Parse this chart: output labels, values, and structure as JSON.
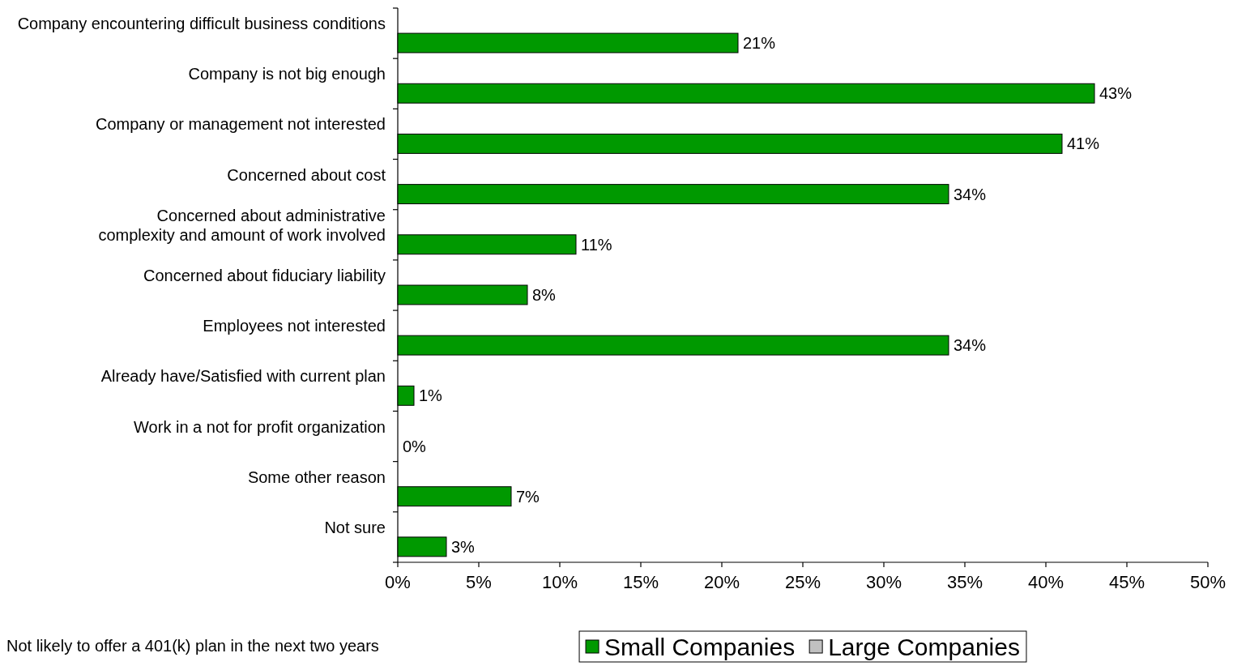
{
  "chart_data": {
    "type": "bar",
    "orientation": "horizontal",
    "categories": [
      "Company encountering difficult business conditions",
      "Company is not big enough",
      "Company or management not interested",
      "Concerned about cost",
      "Concerned about administrative\ncomplexity and amount of work involved",
      "Concerned about fiduciary liability",
      "Employees not interested",
      "Already have/Satisfied with current plan",
      "Work in a not for profit organization",
      "Some other reason",
      "Not sure"
    ],
    "series": [
      {
        "name": "Small Companies",
        "color": "#009900",
        "values": [
          21,
          43,
          41,
          34,
          11,
          8,
          34,
          1,
          0,
          7,
          3
        ],
        "value_labels": [
          "21%",
          "43%",
          "41%",
          "34%",
          "11%",
          "8%",
          "34%",
          "1%",
          "0%",
          "7%",
          "3%"
        ]
      },
      {
        "name": "Large Companies",
        "color": "#c0c0c0",
        "values": [
          null,
          null,
          null,
          null,
          null,
          null,
          null,
          null,
          null,
          null,
          null
        ]
      }
    ],
    "xlim": [
      0,
      50
    ],
    "xticks": [
      {
        "value": 0,
        "label": "0%"
      },
      {
        "value": 5,
        "label": "5%"
      },
      {
        "value": 10,
        "label": "10%"
      },
      {
        "value": 15,
        "label": "15%"
      },
      {
        "value": 20,
        "label": "20%"
      },
      {
        "value": 25,
        "label": "25%"
      },
      {
        "value": 30,
        "label": "30%"
      },
      {
        "value": 35,
        "label": "35%"
      },
      {
        "value": 40,
        "label": "40%"
      },
      {
        "value": 45,
        "label": "45%"
      },
      {
        "value": 50,
        "label": "50%"
      }
    ],
    "legend": "bottom",
    "annotations": [
      "Not likely to offer a 401(k) plan in the next two years"
    ]
  }
}
